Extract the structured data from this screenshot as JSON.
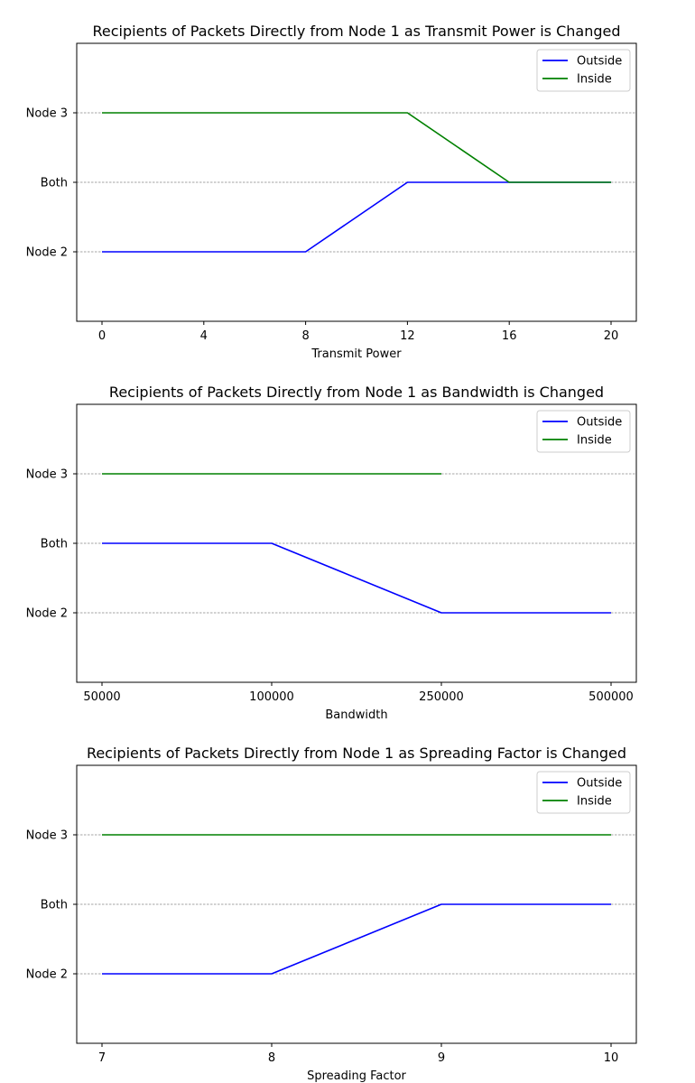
{
  "chart_data": [
    {
      "type": "line",
      "title": "Recipients of Packets Directly from Node 1 as Transmit Power is Changed",
      "xlabel": "Transmit Power",
      "ylabel": "",
      "x": [
        "0",
        "4",
        "8",
        "12",
        "16",
        "20"
      ],
      "y_categories": [
        "Node 2",
        "Both",
        "Node 3"
      ],
      "grid": "y",
      "legend": "top-right",
      "series": [
        {
          "name": "Outside",
          "color": "#0000ff",
          "values": [
            "Node 2",
            "Node 2",
            "Node 2",
            "Both",
            "Both",
            "Both"
          ]
        },
        {
          "name": "Inside",
          "color": "#008000",
          "values": [
            "Node 3",
            "Node 3",
            "Node 3",
            "Node 3",
            "Both",
            "Both"
          ]
        }
      ]
    },
    {
      "type": "line",
      "title": "Recipients of Packets Directly from Node 1 as Bandwidth is Changed",
      "xlabel": "Bandwidth",
      "ylabel": "",
      "x": [
        "50000",
        "100000",
        "250000",
        "500000"
      ],
      "y_categories": [
        "Node 2",
        "Both",
        "Node 3"
      ],
      "grid": "y",
      "legend": "top-right",
      "series": [
        {
          "name": "Outside",
          "color": "#0000ff",
          "values": [
            "Both",
            "Both",
            "Node 2",
            "Node 2"
          ]
        },
        {
          "name": "Inside",
          "color": "#008000",
          "values": [
            "Node 3",
            "Node 3",
            "Node 3",
            null
          ]
        }
      ]
    },
    {
      "type": "line",
      "title": "Recipients of Packets Directly from Node 1 as Spreading Factor is Changed",
      "xlabel": "Spreading Factor",
      "ylabel": "",
      "x": [
        "7",
        "8",
        "9",
        "10"
      ],
      "y_categories": [
        "Node 2",
        "Both",
        "Node 3"
      ],
      "grid": "y",
      "legend": "top-right",
      "series": [
        {
          "name": "Outside",
          "color": "#0000ff",
          "values": [
            "Node 2",
            "Node 2",
            "Both",
            "Both"
          ]
        },
        {
          "name": "Inside",
          "color": "#008000",
          "values": [
            "Node 3",
            "Node 3",
            "Node 3",
            "Node 3"
          ]
        }
      ]
    }
  ]
}
